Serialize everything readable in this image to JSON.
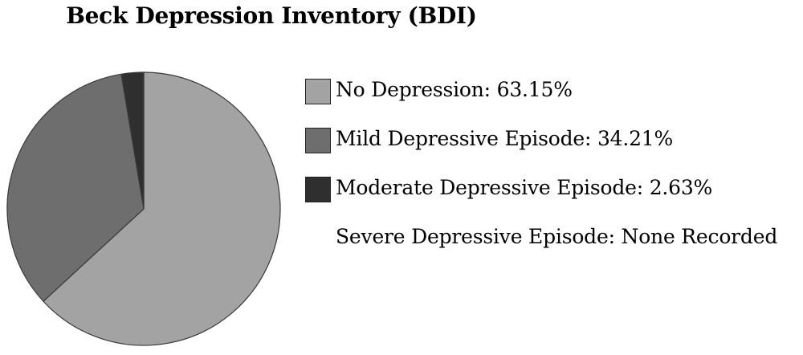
{
  "chart_data": {
    "type": "pie",
    "title": "Beck Depression Inventory (BDI)",
    "slices": [
      {
        "label": "No Depression: 63.15%",
        "value": 63.15,
        "color": "#a3a3a3"
      },
      {
        "label": "Mild Depressive Episode: 34.21%",
        "value": 34.21,
        "color": "#6e6e6e"
      },
      {
        "label": "Moderate Depressive Episode: 2.63%",
        "value": 2.63,
        "color": "#2f2f2f"
      }
    ],
    "note": "Severe Depressive Episode: None Recorded",
    "legend_position": "right",
    "slice_border_color": "#3a3a3a"
  }
}
